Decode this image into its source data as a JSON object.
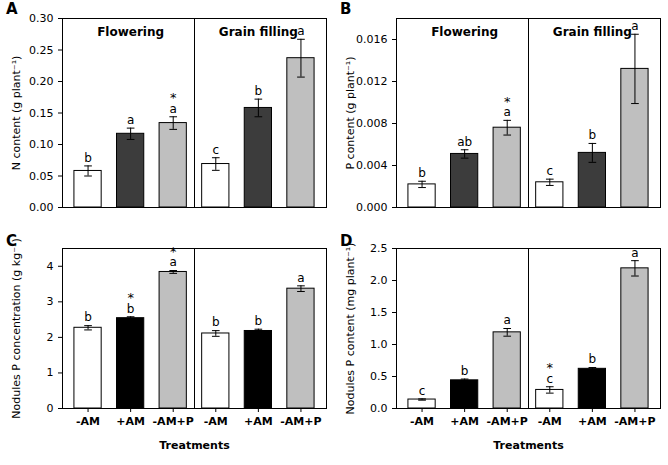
{
  "chart_data": [
    {
      "type": "bar",
      "title": "A",
      "ylabel": "N content (g plant⁻¹)",
      "group_labels": [
        "Flowering",
        "Grain filling"
      ],
      "categories": [
        null,
        null,
        null,
        null,
        null,
        null
      ],
      "values": [
        0.058,
        0.117,
        0.134,
        0.069,
        0.158,
        0.237
      ],
      "errors": [
        0.008,
        0.009,
        0.01,
        0.01,
        0.014,
        0.03
      ],
      "letters": [
        "b",
        "a",
        "a",
        "c",
        "b",
        "a"
      ],
      "asterisks": [
        null,
        null,
        "*",
        null,
        null,
        null
      ],
      "colors": [
        "#ffffff",
        "#3c3c3c",
        "#bfbfbf",
        "#ffffff",
        "#3c3c3c",
        "#bfbfbf"
      ],
      "ylim": [
        0,
        0.3
      ],
      "yticks": [
        {
          "value": 0,
          "label": "0.00"
        },
        0.05,
        {
          "value": 0.1,
          "label": "0.10"
        },
        0.15,
        {
          "value": 0.2,
          "label": "0.20"
        },
        0.25,
        {
          "value": 0.3,
          "label": "0.30"
        }
      ]
    },
    {
      "type": "bar",
      "title": "B",
      "ylabel": "P content (g plant⁻¹)",
      "group_labels": [
        "Flowering",
        "Grain filling"
      ],
      "categories": [
        null,
        null,
        null,
        null,
        null,
        null
      ],
      "values": [
        0.0022,
        0.0051,
        0.0076,
        0.0024,
        0.0052,
        0.0132
      ],
      "errors": [
        0.0003,
        0.0004,
        0.0007,
        0.0003,
        0.0009,
        0.0033
      ],
      "letters": [
        "b",
        "ab",
        "a",
        "c",
        "b",
        "a"
      ],
      "asterisks": [
        null,
        null,
        "*",
        null,
        null,
        null
      ],
      "colors": [
        "#ffffff",
        "#3c3c3c",
        "#bfbfbf",
        "#ffffff",
        "#3c3c3c",
        "#bfbfbf"
      ],
      "ylim": [
        0,
        0.018
      ],
      "yticks": [
        {
          "value": 0,
          "label": "0.000"
        },
        {
          "value": 0.004,
          "label": "0.004"
        },
        {
          "value": 0.008,
          "label": "0.008"
        },
        {
          "value": 0.012,
          "label": "0.012"
        },
        {
          "value": 0.016,
          "label": "0.016"
        }
      ]
    },
    {
      "type": "bar",
      "title": "C",
      "ylabel": "Nodules P concentration (g kg⁻¹)",
      "xlabel": "Treatments",
      "categories": [
        "-AM",
        "+AM",
        "-AM+P",
        "-AM",
        "+AM",
        "-AM+P"
      ],
      "values": [
        2.27,
        2.54,
        3.84,
        2.11,
        2.18,
        3.37
      ],
      "errors": [
        0.06,
        0.04,
        0.04,
        0.08,
        0.05,
        0.08
      ],
      "letters": [
        "b",
        "b",
        "a",
        "b",
        "b",
        "a"
      ],
      "asterisks": [
        null,
        "*",
        "*",
        null,
        null,
        null
      ],
      "colors": [
        "#ffffff",
        "#000000",
        "#bfbfbf",
        "#ffffff",
        "#000000",
        "#bfbfbf"
      ],
      "ylim": [
        0,
        4.5
      ],
      "yticks": [
        0,
        1,
        2,
        3,
        4
      ]
    },
    {
      "type": "bar",
      "title": "D",
      "ylabel": "Nodules P content (mg plant⁻¹)",
      "xlabel": "Treatments",
      "categories": [
        "-AM",
        "+AM",
        "-AM+P",
        "-AM",
        "+AM",
        "-AM+P"
      ],
      "values": [
        0.14,
        0.44,
        1.19,
        0.29,
        0.62,
        2.19
      ],
      "errors": [
        0.01,
        0.02,
        0.06,
        0.05,
        0.02,
        0.12
      ],
      "letters": [
        "c",
        "b",
        "a",
        "c",
        "b",
        "a"
      ],
      "asterisks": [
        null,
        null,
        null,
        "*",
        null,
        null
      ],
      "colors": [
        "#ffffff",
        "#000000",
        "#bfbfbf",
        "#ffffff",
        "#000000",
        "#bfbfbf"
      ],
      "ylim": [
        0,
        2.5
      ],
      "yticks": [
        {
          "value": 0,
          "label": "0.0"
        },
        0.5,
        {
          "value": 1,
          "label": "1.0"
        },
        1.5,
        {
          "value": 2,
          "label": "2.0"
        },
        2.5
      ]
    }
  ]
}
